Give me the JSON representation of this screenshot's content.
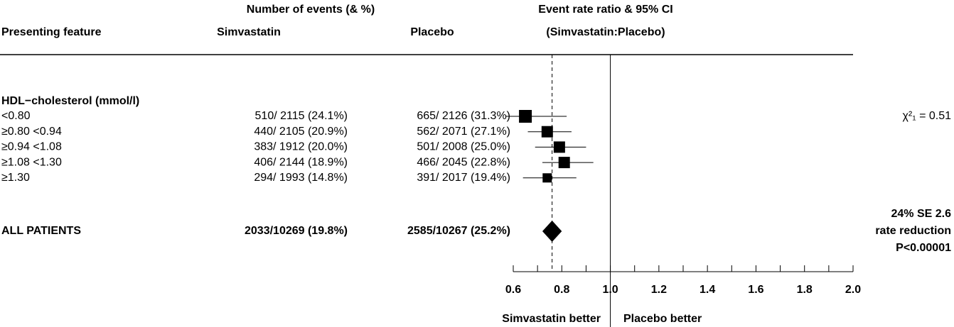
{
  "chart_data": {
    "type": "forest",
    "headers": {
      "events": "Number of events (& %)",
      "feature": "Presenting feature",
      "simvastatin": "Simvastatin",
      "placebo": "Placebo",
      "ratio": "Event rate ratio & 95% CI",
      "ratio_sub": "(Simvastatin:Placebo)"
    },
    "group": "HDL−cholesterol (mmol/l)",
    "rows": [
      {
        "label": "<0.80",
        "simvastatin": "510/ 2115 (24.1%)",
        "placebo": "665/ 2126 (31.3%)",
        "estimate": 0.65,
        "ci": [
          0.57,
          0.82
        ]
      },
      {
        "label": "≥0.80 <0.94",
        "simvastatin": "440/ 2105 (20.9%)",
        "placebo": "562/ 2071 (27.1%)",
        "estimate": 0.74,
        "ci": [
          0.66,
          0.84
        ]
      },
      {
        "label": "≥0.94 <1.08",
        "simvastatin": "383/ 1912 (20.0%)",
        "placebo": "501/ 2008 (25.0%)",
        "estimate": 0.79,
        "ci": [
          0.69,
          0.9
        ]
      },
      {
        "label": "≥1.08 <1.30",
        "simvastatin": "406/ 2144 (18.9%)",
        "placebo": "466/ 2045 (22.8%)",
        "estimate": 0.81,
        "ci": [
          0.72,
          0.93
        ]
      },
      {
        "label": "≥1.30",
        "simvastatin": "294/ 1993 (14.8%)",
        "placebo": "391/ 2017 (19.4%)",
        "estimate": 0.74,
        "ci": [
          0.64,
          0.86
        ]
      }
    ],
    "overall": {
      "label": "ALL PATIENTS",
      "simvastatin": "2033/10269 (19.8%)",
      "placebo": "2585/10267 (25.2%)",
      "estimate": 0.76,
      "ci": [
        0.72,
        0.8
      ]
    },
    "heterogeneity": "χ²₁ = 0.51",
    "summary": [
      "24% SE 2.6",
      "rate reduction",
      "P<0.00001"
    ],
    "xlim": [
      0.6,
      2.0
    ],
    "xticks": [
      0.6,
      0.8,
      {
        "value": 1,
        "label": "1.0"
      },
      1.2,
      1.4,
      1.6,
      1.8,
      {
        "value": 2,
        "label": "2.0"
      }
    ],
    "xminorticks": [
      0.7,
      0.9,
      1.1,
      1.3,
      1.5,
      1.7,
      1.9
    ],
    "reference": 1,
    "x_left_label": "Simvastatin better",
    "x_right_label": "Placebo better"
  }
}
